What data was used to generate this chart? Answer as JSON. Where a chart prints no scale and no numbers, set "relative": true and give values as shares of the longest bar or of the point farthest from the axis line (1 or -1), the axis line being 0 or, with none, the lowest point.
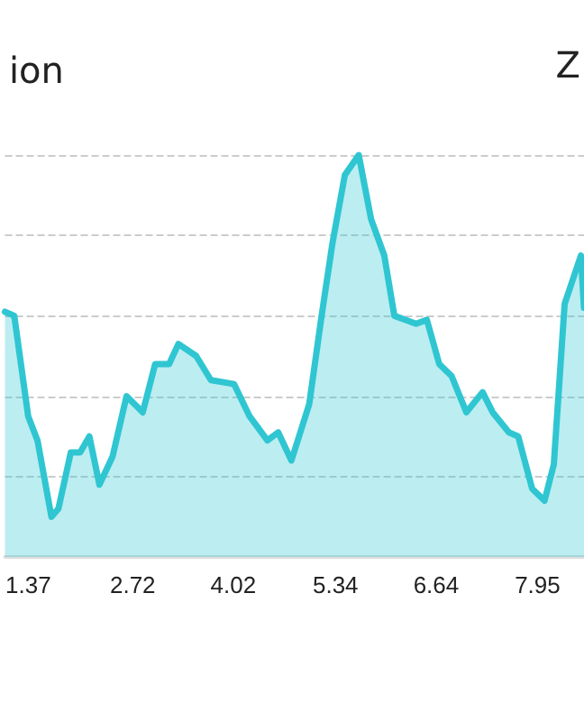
{
  "chart_data": {
    "type": "area",
    "title": "ion",
    "annotations": [
      "Z"
    ],
    "relative": true,
    "grid": "y",
    "marker": "none",
    "line_style": "solid",
    "xlim": [
      1.07,
      8.55
    ],
    "xticks": [
      1.37,
      2.72,
      4.02,
      5.34,
      6.64,
      7.95
    ],
    "series": [
      {
        "color": "#2fc6d2",
        "x": [
          1.07,
          1.19,
          1.37,
          1.49,
          1.67,
          1.76,
          1.92,
          2.04,
          2.16,
          2.29,
          2.46,
          2.64,
          2.85,
          3.01,
          3.19,
          3.31,
          3.54,
          3.73,
          4.03,
          4.23,
          4.46,
          4.6,
          4.77,
          5.0,
          5.16,
          5.3,
          5.46,
          5.64,
          5.8,
          5.97,
          6.1,
          6.38,
          6.52,
          6.68,
          6.84,
          7.03,
          7.24,
          7.37,
          7.58,
          7.7,
          7.88,
          8.04,
          8.16,
          8.3,
          8.51,
          8.55
        ],
        "values": [
          0.61,
          0.6,
          0.35,
          0.29,
          0.1,
          0.12,
          0.26,
          0.26,
          0.3,
          0.18,
          0.25,
          0.4,
          0.36,
          0.48,
          0.48,
          0.53,
          0.5,
          0.44,
          0.43,
          0.35,
          0.29,
          0.31,
          0.24,
          0.38,
          0.6,
          0.78,
          0.95,
          1.0,
          0.84,
          0.75,
          0.6,
          0.58,
          0.59,
          0.48,
          0.45,
          0.36,
          0.41,
          0.36,
          0.31,
          0.3,
          0.17,
          0.14,
          0.23,
          0.63,
          0.75,
          0.62
        ]
      }
    ]
  }
}
